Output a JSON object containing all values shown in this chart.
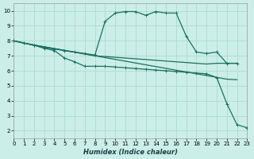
{
  "xlabel": "Humidex (Indice chaleur)",
  "background_color": "#cceee8",
  "grid_color": "#aaddcc",
  "line_color": "#1a7060",
  "xlim": [
    0,
    23
  ],
  "ylim": [
    1.5,
    10.5
  ],
  "xticks": [
    0,
    1,
    2,
    3,
    4,
    5,
    6,
    7,
    8,
    9,
    10,
    11,
    12,
    13,
    14,
    15,
    16,
    17,
    18,
    19,
    20,
    21,
    22,
    23
  ],
  "yticks": [
    2,
    3,
    4,
    5,
    6,
    7,
    8,
    9,
    10
  ],
  "line_peak_x": [
    0,
    1,
    2,
    3,
    4,
    5,
    6,
    7,
    8,
    9,
    10,
    11,
    12,
    13,
    14,
    15,
    16,
    17,
    18,
    19,
    20,
    21,
    22
  ],
  "line_peak_y": [
    8.0,
    7.85,
    7.7,
    7.55,
    7.45,
    7.35,
    7.25,
    7.15,
    7.05,
    9.3,
    9.85,
    9.95,
    9.95,
    9.7,
    9.95,
    9.85,
    9.85,
    8.3,
    7.25,
    7.15,
    7.25,
    6.5,
    6.5
  ],
  "line_drop_x": [
    0,
    1,
    2,
    3,
    4,
    5,
    6,
    7,
    8,
    9,
    10,
    11,
    12,
    13,
    14,
    15,
    16,
    17,
    18,
    19,
    20,
    21,
    22,
    23
  ],
  "line_drop_y": [
    8.0,
    7.85,
    7.7,
    7.5,
    7.35,
    6.85,
    6.6,
    6.3,
    6.3,
    6.3,
    6.25,
    6.2,
    6.15,
    6.1,
    6.05,
    6.0,
    5.95,
    5.9,
    5.85,
    5.8,
    5.55,
    3.8,
    2.4,
    2.2
  ],
  "line_flat1_x": [
    0,
    1,
    2,
    3,
    4,
    5,
    6,
    7,
    8,
    9,
    10,
    11,
    12,
    13,
    14,
    15,
    16,
    17,
    18,
    19,
    20,
    21,
    22
  ],
  "line_flat1_y": [
    8.0,
    7.85,
    7.72,
    7.6,
    7.48,
    7.36,
    7.24,
    7.12,
    7.0,
    6.95,
    6.9,
    6.85,
    6.8,
    6.75,
    6.7,
    6.65,
    6.6,
    6.55,
    6.5,
    6.45,
    6.5,
    6.5,
    6.5
  ],
  "line_flat2_x": [
    0,
    1,
    2,
    3,
    4,
    5,
    6,
    7,
    8,
    9,
    10,
    11,
    12,
    13,
    14,
    15,
    16,
    17,
    18,
    19,
    20,
    21,
    22
  ],
  "line_flat2_y": [
    8.0,
    7.85,
    7.72,
    7.6,
    7.48,
    7.36,
    7.24,
    7.12,
    7.0,
    6.88,
    6.76,
    6.64,
    6.52,
    6.4,
    6.28,
    6.16,
    6.04,
    5.92,
    5.8,
    5.68,
    5.56,
    5.44,
    5.4
  ]
}
